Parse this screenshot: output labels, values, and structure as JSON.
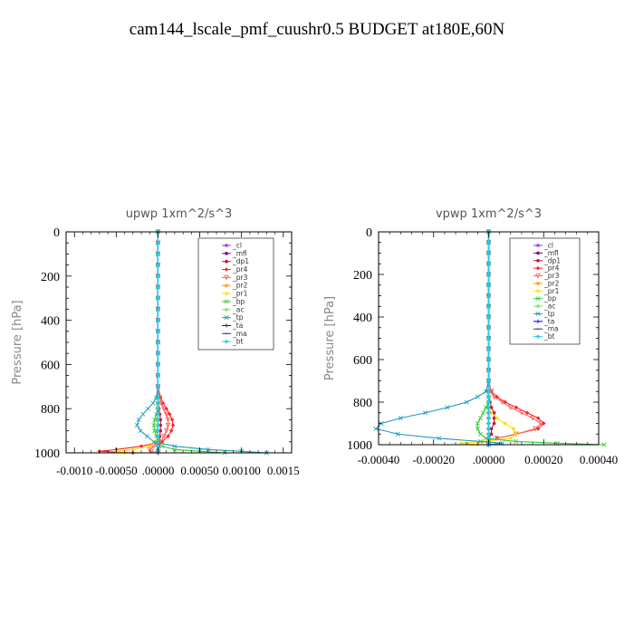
{
  "title": "cam144_lscale_pmf_cuushr0.5  BUDGET at180E,60N",
  "chart_data": [
    {
      "type": "line",
      "title": "upwp   1xm^2/s^3",
      "ylabel": "Pressure [hPa]",
      "xlabel": "",
      "xlim": [
        -0.0011,
        0.0016
      ],
      "ylim": [
        1000,
        0
      ],
      "yticks": [
        0,
        200,
        400,
        600,
        800,
        1000
      ],
      "yticklabels": [
        "0",
        "200",
        "400",
        "600",
        "800",
        "1000"
      ],
      "xticks": [
        -0.001,
        -0.0005,
        0,
        0.0005,
        0.001,
        0.0015
      ],
      "xticklabels": [
        "-0.0010",
        "-0.00050",
        ".00000",
        "0.00050",
        "0.00100",
        "0.0015"
      ],
      "pressure": [
        0,
        50,
        100,
        150,
        200,
        250,
        300,
        350,
        400,
        450,
        500,
        550,
        600,
        650,
        700,
        750,
        775,
        800,
        825,
        850,
        875,
        900,
        925,
        950,
        970,
        985,
        993,
        1000
      ],
      "series": [
        {
          "name": "_cl",
          "color": "#9933cc",
          "marker": "star",
          "values": [
            0,
            0,
            0,
            0,
            0,
            0,
            0,
            0,
            0,
            0,
            0,
            0,
            0,
            0,
            0,
            0,
            0,
            0,
            0,
            0,
            0,
            0,
            0,
            0,
            0,
            0,
            0,
            0
          ]
        },
        {
          "name": "_mfl",
          "color": "#800080",
          "marker": "circle",
          "values": [
            0,
            0,
            0,
            0,
            0,
            0,
            0,
            0,
            0,
            0,
            0,
            0,
            0,
            0,
            0,
            0,
            0,
            0,
            0,
            0,
            0,
            0,
            0,
            0,
            0,
            0,
            0,
            0
          ]
        },
        {
          "name": "_dp1",
          "color": "#c0143c",
          "marker": "circle",
          "values": [
            0,
            0,
            0,
            0,
            0,
            0,
            0,
            0,
            0,
            0,
            0,
            0,
            0,
            0,
            0,
            0,
            0,
            1e-05,
            2e-05,
            3e-05,
            3e-05,
            3e-05,
            2e-05,
            2e-05,
            1e-05,
            0,
            0,
            0
          ]
        },
        {
          "name": "_pr4",
          "color": "#ff2020",
          "marker": "diamond",
          "values": [
            0,
            0,
            0,
            0,
            0,
            0,
            0,
            0,
            0,
            0,
            0,
            0,
            0,
            0,
            0,
            3e-05,
            6e-05,
            0.0001,
            0.00014,
            0.00017,
            0.00018,
            0.00016,
            0.00012,
            5e-05,
            -0.0002,
            -0.0005,
            -0.0007,
            -0.0003
          ]
        },
        {
          "name": "_pr3",
          "color": "#ff6060",
          "marker": "triangle-down",
          "values": [
            0,
            0,
            0,
            0,
            0,
            0,
            0,
            0,
            0,
            0,
            0,
            0,
            0,
            0,
            0,
            2e-05,
            4e-05,
            7e-05,
            0.0001,
            0.00012,
            0.00012,
            0.0001,
            7e-05,
            3e-05,
            -5e-05,
            -0.0001,
            -8e-05,
            0
          ]
        },
        {
          "name": "_pr2",
          "color": "#ff9900",
          "marker": "star",
          "values": [
            0,
            0,
            0,
            0,
            0,
            0,
            0,
            0,
            0,
            0,
            0,
            0,
            0,
            0,
            0,
            0,
            0,
            0,
            0,
            0,
            0,
            0,
            0,
            0,
            0,
            0,
            0,
            0
          ]
        },
        {
          "name": "_pr1",
          "color": "#ffdd00",
          "marker": "star",
          "values": [
            0,
            0,
            0,
            0,
            0,
            0,
            0,
            0,
            0,
            0,
            0,
            0,
            0,
            0,
            0,
            0,
            0,
            0,
            0,
            0,
            0,
            0,
            0,
            -3e-05,
            -0.0001,
            -0.0003,
            -0.0005,
            -0.0004
          ]
        },
        {
          "name": "_bp",
          "color": "#33cc33",
          "marker": "x",
          "values": [
            0,
            0,
            0,
            0,
            0,
            0,
            0,
            0,
            0,
            0,
            0,
            0,
            0,
            0,
            0,
            0,
            0,
            0,
            -2e-05,
            -4e-05,
            -5e-05,
            -4e-05,
            -2e-05,
            1e-05,
            5e-05,
            0.0002,
            0.0005,
            0.0008
          ]
        },
        {
          "name": "_ac",
          "color": "#77ee55",
          "marker": "circle",
          "values": [
            0,
            0,
            0,
            0,
            0,
            0,
            0,
            0,
            0,
            0,
            0,
            0,
            0,
            0,
            0,
            0,
            0,
            0,
            0,
            0,
            0,
            0,
            0,
            0,
            0,
            0,
            0,
            0
          ]
        },
        {
          "name": "_tp",
          "color": "#2299bb",
          "marker": "x",
          "values": [
            0,
            0,
            0,
            0,
            0,
            0,
            0,
            0,
            0,
            0,
            0,
            0,
            0,
            0,
            0,
            -2e-05,
            -6e-05,
            -0.00012,
            -0.00018,
            -0.00023,
            -0.00025,
            -0.00021,
            -0.00013,
            -5e-05,
            0.0002,
            0.0006,
            0.001,
            0.0013
          ]
        },
        {
          "name": "_ta",
          "color": "#0000cc",
          "marker": "plus",
          "values": [
            0,
            0,
            0,
            0,
            0,
            0,
            0,
            0,
            0,
            0,
            0,
            0,
            0,
            0,
            0,
            0,
            0,
            0,
            0,
            0,
            0,
            0,
            0,
            0,
            0,
            0,
            0,
            0
          ]
        },
        {
          "name": "_ma",
          "color": "#333399",
          "marker": "dash",
          "values": [
            0,
            0,
            0,
            0,
            0,
            0,
            0,
            0,
            0,
            0,
            0,
            0,
            0,
            0,
            0,
            0,
            0,
            0,
            0,
            0,
            0,
            0,
            0,
            0,
            0,
            0,
            0,
            0
          ]
        },
        {
          "name": "_bt",
          "color": "#22ccee",
          "marker": "diamond",
          "values": [
            0,
            0,
            0,
            0,
            0,
            0,
            0,
            0,
            0,
            0,
            0,
            0,
            0,
            0,
            0,
            0,
            0,
            0,
            0,
            0,
            0,
            0,
            0,
            0,
            0,
            0,
            0,
            0
          ]
        }
      ]
    },
    {
      "type": "line",
      "title": "vpwp   1xm^2/s^3",
      "ylabel": "Pressure [hPa]",
      "xlabel": "",
      "xlim": [
        -0.0004,
        0.0004
      ],
      "ylim": [
        1000,
        0
      ],
      "yticks": [
        0,
        200,
        400,
        600,
        800,
        1000
      ],
      "yticklabels": [
        "0",
        "200",
        "400",
        "600",
        "800",
        "1000"
      ],
      "xticks": [
        -0.0004,
        -0.0002,
        0,
        0.0002,
        0.0004
      ],
      "xticklabels": [
        "-0.00040",
        "-0.00020",
        ".00000",
        "0.00020",
        "0.00040"
      ],
      "pressure": [
        0,
        50,
        100,
        150,
        200,
        250,
        300,
        350,
        400,
        450,
        500,
        550,
        600,
        650,
        700,
        750,
        775,
        800,
        825,
        850,
        875,
        900,
        925,
        950,
        970,
        985,
        993,
        1000
      ],
      "series": [
        {
          "name": "_cl",
          "color": "#9933cc",
          "marker": "star",
          "values": [
            0,
            0,
            0,
            0,
            0,
            0,
            0,
            0,
            0,
            0,
            0,
            0,
            0,
            0,
            0,
            0,
            0,
            0,
            0,
            0,
            0,
            0,
            0,
            0,
            0,
            0,
            0,
            0
          ]
        },
        {
          "name": "_mfl",
          "color": "#800080",
          "marker": "circle",
          "values": [
            0,
            0,
            0,
            0,
            0,
            0,
            0,
            0,
            0,
            0,
            0,
            0,
            0,
            0,
            0,
            0,
            0,
            0,
            0,
            0,
            0,
            0,
            0,
            0,
            0,
            0,
            0,
            0
          ]
        },
        {
          "name": "_dp1",
          "color": "#c0143c",
          "marker": "circle",
          "values": [
            0,
            0,
            0,
            0,
            0,
            0,
            0,
            0,
            0,
            0,
            0,
            0,
            0,
            0,
            0,
            0,
            0,
            5e-06,
            1e-05,
            2e-05,
            2e-05,
            2e-05,
            1e-05,
            1e-05,
            0,
            0,
            0,
            0
          ]
        },
        {
          "name": "_pr4",
          "color": "#ff2020",
          "marker": "diamond",
          "values": [
            0,
            0,
            0,
            0,
            0,
            0,
            0,
            0,
            0,
            0,
            0,
            0,
            0,
            0,
            0,
            1e-05,
            3e-05,
            6e-05,
            0.0001,
            0.00014,
            0.00018,
            0.0002,
            0.00018,
            0.0001,
            3e-05,
            0,
            0,
            0
          ]
        },
        {
          "name": "_pr3",
          "color": "#ff6060",
          "marker": "triangle-down",
          "values": [
            0,
            0,
            0,
            0,
            0,
            0,
            0,
            0,
            0,
            0,
            0,
            0,
            0,
            0,
            0,
            1e-05,
            2e-05,
            5e-05,
            8e-05,
            0.00012,
            0.00016,
            0.00019,
            0.00017,
            0.0001,
            3e-05,
            0,
            0,
            0
          ]
        },
        {
          "name": "_pr2",
          "color": "#ff9900",
          "marker": "star",
          "values": [
            0,
            0,
            0,
            0,
            0,
            0,
            0,
            0,
            0,
            0,
            0,
            0,
            0,
            0,
            0,
            0,
            0,
            0,
            0,
            0,
            0,
            0,
            0,
            0,
            0,
            0,
            0,
            0
          ]
        },
        {
          "name": "_pr1",
          "color": "#ffdd00",
          "marker": "star",
          "values": [
            0,
            0,
            0,
            0,
            0,
            0,
            0,
            0,
            0,
            0,
            0,
            0,
            0,
            0,
            0,
            0,
            0,
            0,
            0,
            1e-05,
            3e-05,
            6e-05,
            9e-05,
            0.0001,
            8e-05,
            -2e-05,
            -0.0001,
            -4e-05
          ]
        },
        {
          "name": "_bp",
          "color": "#33cc33",
          "marker": "x",
          "values": [
            0,
            0,
            0,
            0,
            0,
            0,
            0,
            0,
            0,
            0,
            0,
            0,
            0,
            0,
            0,
            0,
            0,
            0,
            -1e-05,
            -2e-05,
            -3e-05,
            -4e-05,
            -4e-05,
            -3e-05,
            -1e-05,
            0.0001,
            0.00025,
            0.00042
          ]
        },
        {
          "name": "_ac",
          "color": "#77ee55",
          "marker": "circle",
          "values": [
            0,
            0,
            0,
            0,
            0,
            0,
            0,
            0,
            0,
            0,
            0,
            0,
            0,
            0,
            0,
            0,
            0,
            0,
            0,
            0,
            0,
            0,
            0,
            0,
            0,
            0,
            0,
            0
          ]
        },
        {
          "name": "_tp",
          "color": "#2299bb",
          "marker": "x",
          "values": [
            0,
            0,
            0,
            0,
            0,
            0,
            0,
            0,
            0,
            0,
            0,
            0,
            0,
            0,
            0,
            -1e-05,
            -4e-05,
            -8e-05,
            -0.00015,
            -0.00023,
            -0.00032,
            -0.00039,
            -0.00041,
            -0.00033,
            -0.00018,
            -3e-05,
            5e-05,
            0
          ]
        },
        {
          "name": "_ta",
          "color": "#0000cc",
          "marker": "plus",
          "values": [
            0,
            0,
            0,
            0,
            0,
            0,
            0,
            0,
            0,
            0,
            0,
            0,
            0,
            0,
            0,
            0,
            0,
            0,
            0,
            0,
            0,
            0,
            0,
            0,
            0,
            0,
            0,
            0
          ]
        },
        {
          "name": "_ma",
          "color": "#333399",
          "marker": "dash",
          "values": [
            0,
            0,
            0,
            0,
            0,
            0,
            0,
            0,
            0,
            0,
            0,
            0,
            0,
            0,
            0,
            0,
            0,
            0,
            0,
            0,
            0,
            0,
            0,
            0,
            0,
            0,
            0,
            0
          ]
        },
        {
          "name": "_bt",
          "color": "#22ccee",
          "marker": "diamond",
          "values": [
            0,
            0,
            0,
            0,
            0,
            0,
            0,
            0,
            0,
            0,
            0,
            0,
            0,
            0,
            0,
            0,
            0,
            0,
            0,
            0,
            0,
            0,
            0,
            0,
            0,
            0,
            0,
            0
          ]
        }
      ]
    }
  ]
}
